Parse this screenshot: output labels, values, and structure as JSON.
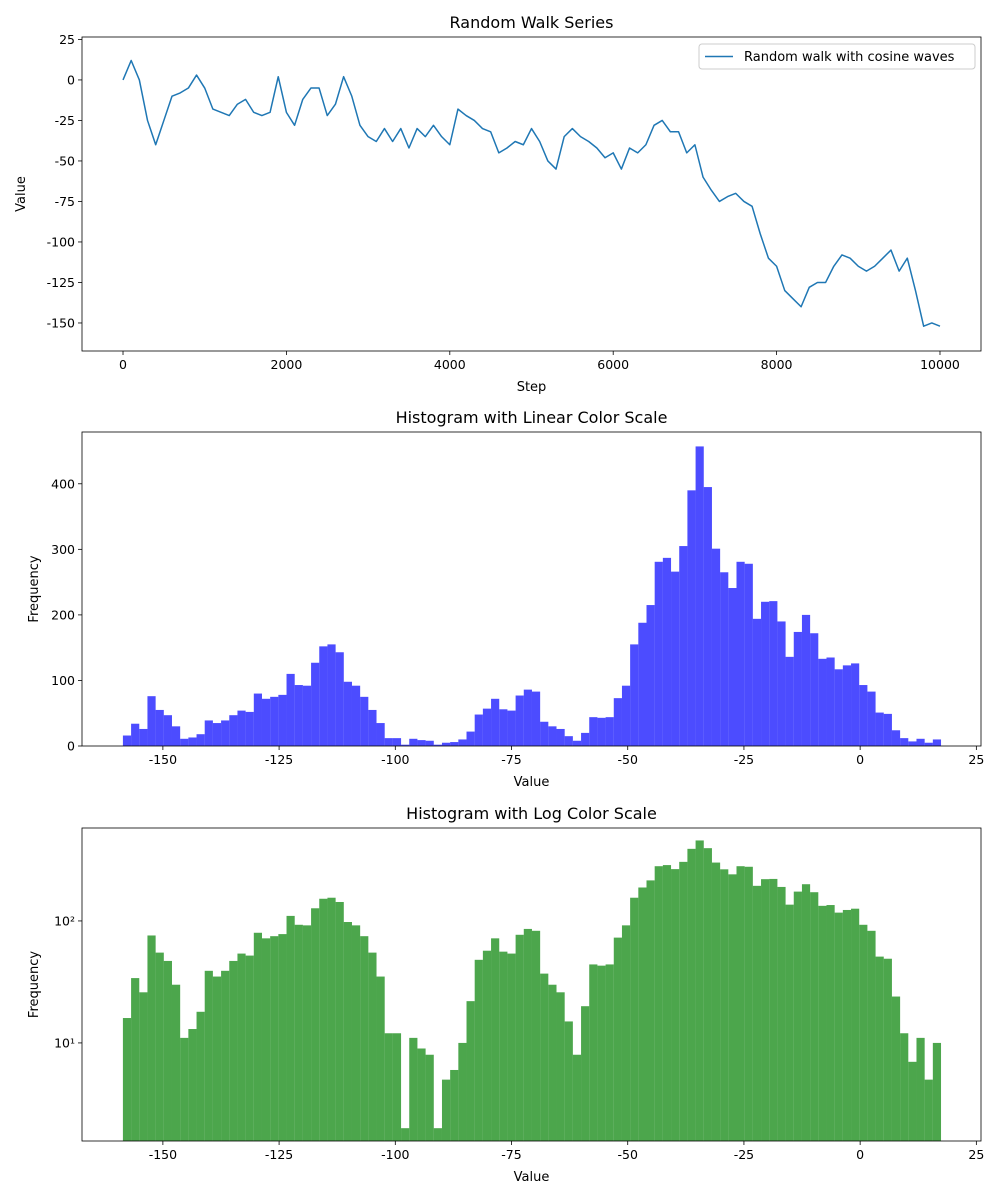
{
  "chart_data": [
    {
      "type": "line",
      "title": "Random Walk Series",
      "xlabel": "Step",
      "ylabel": "Value",
      "x": [
        0,
        100,
        200,
        300,
        400,
        500,
        600,
        700,
        800,
        900,
        1000,
        1100,
        1200,
        1300,
        1400,
        1500,
        1600,
        1700,
        1800,
        1900,
        2000,
        2100,
        2200,
        2300,
        2400,
        2500,
        2600,
        2700,
        2800,
        2900,
        3000,
        3100,
        3200,
        3300,
        3400,
        3500,
        3600,
        3700,
        3800,
        3900,
        4000,
        4100,
        4200,
        4300,
        4400,
        4500,
        4600,
        4700,
        4800,
        4900,
        5000,
        5100,
        5200,
        5300,
        5400,
        5500,
        5600,
        5700,
        5800,
        5900,
        6000,
        6100,
        6200,
        6300,
        6400,
        6500,
        6600,
        6700,
        6800,
        6900,
        7000,
        7100,
        7200,
        7300,
        7400,
        7500,
        7600,
        7700,
        7800,
        7900,
        8000,
        8100,
        8200,
        8300,
        8400,
        8500,
        8600,
        8700,
        8800,
        8900,
        9000,
        9100,
        9200,
        9300,
        9400,
        9500,
        9600,
        9700,
        9800,
        9900,
        10000
      ],
      "series": [
        {
          "name": "Random walk with cosine waves",
          "color": "#1f77b4",
          "values": [
            0,
            12,
            0,
            -25,
            -40,
            -25,
            -10,
            -8,
            -5,
            3,
            -5,
            -18,
            -20,
            -22,
            -15,
            -12,
            -20,
            -22,
            -20,
            2,
            -20,
            -28,
            -12,
            -5,
            -5,
            -22,
            -15,
            2,
            -10,
            -28,
            -35,
            -38,
            -30,
            -38,
            -30,
            -42,
            -30,
            -35,
            -28,
            -35,
            -40,
            -18,
            -22,
            -25,
            -30,
            -32,
            -45,
            -42,
            -38,
            -40,
            -30,
            -38,
            -50,
            -55,
            -35,
            -30,
            -35,
            -38,
            -42,
            -48,
            -45,
            -55,
            -42,
            -45,
            -40,
            -28,
            -25,
            -32,
            -32,
            -45,
            -40,
            -60,
            -68,
            -75,
            -72,
            -70,
            -75,
            -78,
            -95,
            -110,
            -115,
            -130,
            -135,
            -140,
            -128,
            -125,
            -125,
            -115,
            -108,
            -110,
            -115,
            -118,
            -115,
            -110,
            -105,
            -118,
            -110,
            -130,
            -152,
            -150,
            -152
          ]
        }
      ],
      "xlim": [
        -502,
        10502
      ],
      "xticks": [
        0,
        2000,
        4000,
        6000,
        8000,
        10000
      ],
      "ylim": [
        -167.3,
        26.5
      ],
      "yticks": [
        -150,
        -125,
        -100,
        -75,
        -50,
        -25,
        0,
        25
      ],
      "legend": "upper right"
    },
    {
      "type": "histogram",
      "title": "Histogram with Linear Color Scale",
      "xlabel": "Value",
      "ylabel": "Frequency",
      "bins": [
        -158.6,
        -156.84,
        -155.08,
        -153.32,
        -151.56,
        -149.8,
        -148.04,
        -146.28,
        -144.52,
        -142.76,
        -141,
        -139.24,
        -137.48,
        -135.72,
        -133.96,
        -132.2,
        -130.44,
        -128.68,
        -126.92,
        -125.16,
        -123.4,
        -121.64,
        -119.88,
        -118.12,
        -116.36,
        -114.6,
        -112.84,
        -111.08,
        -109.32,
        -107.56,
        -105.8,
        -104.04,
        -102.28,
        -100.52,
        -98.76,
        -97,
        -95.24,
        -93.48,
        -91.72,
        -89.96,
        -88.2,
        -86.44,
        -84.68,
        -82.92,
        -81.16,
        -79.4,
        -77.64,
        -75.88,
        -74.12,
        -72.36,
        -70.6,
        -68.84,
        -67.08,
        -65.32,
        -63.56,
        -61.8,
        -60.04,
        -58.28,
        -56.52,
        -54.76,
        -53,
        -51.24,
        -49.48,
        -47.72,
        -45.96,
        -44.2,
        -42.44,
        -40.68,
        -38.92,
        -37.16,
        -35.4,
        -33.64,
        -31.88,
        -30.12,
        -28.36,
        -26.6,
        -24.84,
        -23.08,
        -21.32,
        -19.56,
        -17.8,
        -16.04,
        -14.28,
        -12.52,
        -10.76,
        -9,
        -7.24,
        -5.48,
        -3.72,
        -1.96,
        -0.2,
        1.56,
        3.32,
        5.08,
        6.84,
        8.6,
        10.36,
        12.12,
        13.88,
        15.64,
        17.4
      ],
      "values": [
        16,
        34,
        26,
        76,
        55,
        47,
        30,
        11,
        13,
        18,
        39,
        35,
        39,
        47,
        54,
        52,
        80,
        72,
        75,
        78,
        110,
        93,
        92,
        127,
        152,
        155,
        143,
        98,
        92,
        75,
        55,
        35,
        12,
        12,
        2,
        11,
        9,
        8,
        2,
        5,
        6,
        10,
        22,
        48,
        57,
        72,
        56,
        54,
        77,
        86,
        83,
        37,
        30,
        26,
        15,
        8,
        20,
        44,
        43,
        44,
        73,
        92,
        155,
        188,
        215,
        281,
        287,
        266,
        305,
        390,
        457,
        395,
        301,
        265,
        241,
        281,
        278,
        194,
        220,
        221,
        190,
        136,
        174,
        200,
        172,
        133,
        135,
        117,
        123,
        126,
        93,
        83,
        51,
        49,
        24,
        12,
        7,
        11,
        5,
        10
      ],
      "color": "#0000ff",
      "alpha": 0.7,
      "xlim": [
        -167.4,
        26
      ],
      "xticks": [
        -150,
        -125,
        -100,
        -75,
        -50,
        -25,
        0,
        25
      ],
      "ylim": [
        0,
        479
      ],
      "yticks": [
        0,
        100,
        200,
        300,
        400
      ]
    },
    {
      "type": "histogram",
      "title": "Histogram with Log Color Scale",
      "xlabel": "Value",
      "ylabel": "Frequency",
      "bins": [
        -158.6,
        -156.84,
        -155.08,
        -153.32,
        -151.56,
        -149.8,
        -148.04,
        -146.28,
        -144.52,
        -142.76,
        -141,
        -139.24,
        -137.48,
        -135.72,
        -133.96,
        -132.2,
        -130.44,
        -128.68,
        -126.92,
        -125.16,
        -123.4,
        -121.64,
        -119.88,
        -118.12,
        -116.36,
        -114.6,
        -112.84,
        -111.08,
        -109.32,
        -107.56,
        -105.8,
        -104.04,
        -102.28,
        -100.52,
        -98.76,
        -97,
        -95.24,
        -93.48,
        -91.72,
        -89.96,
        -88.2,
        -86.44,
        -84.68,
        -82.92,
        -81.16,
        -79.4,
        -77.64,
        -75.88,
        -74.12,
        -72.36,
        -70.6,
        -68.84,
        -67.08,
        -65.32,
        -63.56,
        -61.8,
        -60.04,
        -58.28,
        -56.52,
        -54.76,
        -53,
        -51.24,
        -49.48,
        -47.72,
        -45.96,
        -44.2,
        -42.44,
        -40.68,
        -38.92,
        -37.16,
        -35.4,
        -33.64,
        -31.88,
        -30.12,
        -28.36,
        -26.6,
        -24.84,
        -23.08,
        -21.32,
        -19.56,
        -17.8,
        -16.04,
        -14.28,
        -12.52,
        -10.76,
        -9,
        -7.24,
        -5.48,
        -3.72,
        -1.96,
        -0.2,
        1.56,
        3.32,
        5.08,
        6.84,
        8.6,
        10.36,
        12.12,
        13.88,
        15.64,
        17.4
      ],
      "values": [
        16,
        34,
        26,
        76,
        55,
        47,
        30,
        11,
        13,
        18,
        39,
        35,
        39,
        47,
        54,
        52,
        80,
        72,
        75,
        78,
        110,
        93,
        92,
        127,
        152,
        155,
        143,
        98,
        92,
        75,
        55,
        35,
        12,
        12,
        2,
        11,
        9,
        8,
        2,
        5,
        6,
        10,
        22,
        48,
        57,
        72,
        56,
        54,
        77,
        86,
        83,
        37,
        30,
        26,
        15,
        8,
        20,
        44,
        43,
        44,
        73,
        92,
        155,
        188,
        215,
        281,
        287,
        266,
        305,
        390,
        457,
        395,
        301,
        265,
        241,
        281,
        278,
        194,
        220,
        221,
        190,
        136,
        174,
        200,
        172,
        133,
        135,
        117,
        123,
        126,
        93,
        83,
        51,
        49,
        24,
        12,
        7,
        11,
        5,
        10
      ],
      "color": "#008000",
      "alpha": 0.7,
      "log_scale": true,
      "xlim": [
        -167.4,
        26
      ],
      "xticks": [
        -150,
        -125,
        -100,
        -75,
        -50,
        -25,
        0,
        25
      ],
      "ylim": [
        1.57,
        578
      ],
      "yticks": [
        {
          "value": 10,
          "label": "10¹"
        },
        {
          "value": 100,
          "label": "10²"
        }
      ]
    }
  ]
}
